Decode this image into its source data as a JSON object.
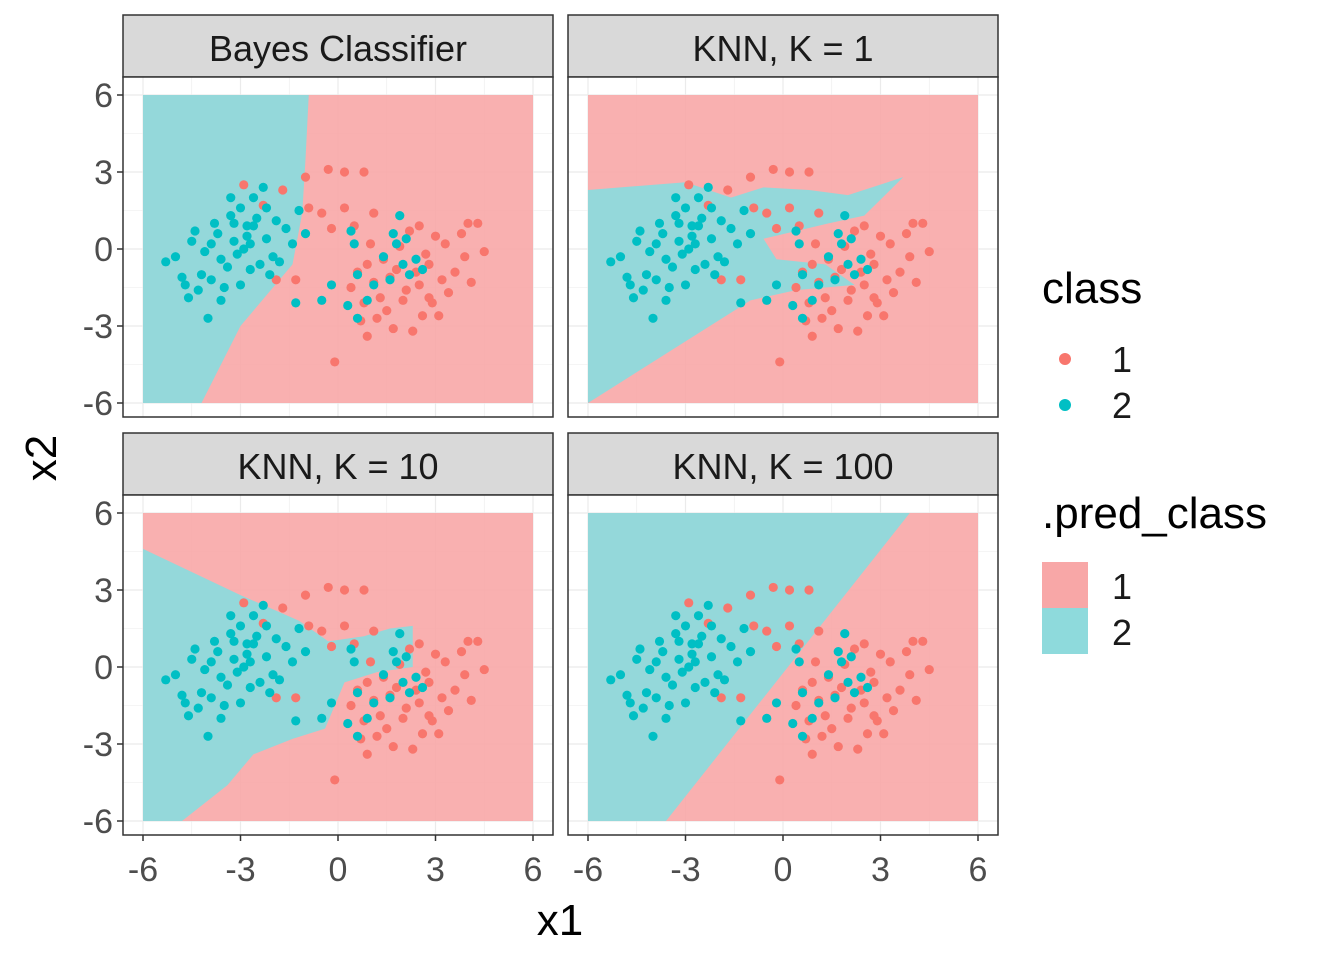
{
  "chart_data": {
    "type": "scatter",
    "facets": [
      "Bayes Classifier",
      "KNN, K = 1",
      "KNN, K = 10",
      "KNN, K = 100"
    ],
    "xlabel": "x1",
    "ylabel": "x2",
    "xlim": [
      -6,
      6
    ],
    "ylim": [
      -6,
      6
    ],
    "x_ticks": [
      -6,
      -3,
      0,
      3,
      6
    ],
    "y_ticks": [
      -6,
      -3,
      0,
      3,
      6
    ],
    "x_tick_labels": [
      "-6",
      "-3",
      "0",
      "3",
      "6"
    ],
    "y_tick_labels": [
      "-6",
      "-3",
      "0",
      "3",
      "6"
    ],
    "grid": true,
    "legends": {
      "class": {
        "title": "class",
        "entries": [
          "1",
          "2"
        ]
      },
      "pred_class": {
        "title": ".pred_class",
        "entries": [
          "1",
          "2"
        ]
      }
    },
    "legend_position": "right",
    "colors": {
      "class_1": "#F8766D",
      "class_2": "#00BFC4",
      "region_1": "#F8A7A7",
      "region_2": "#8EDADC"
    },
    "points": [
      {
        "x": 2.1,
        "y": -1.6,
        "c": 1
      },
      {
        "x": 2.5,
        "y": -1.4,
        "c": 1
      },
      {
        "x": 1.8,
        "y": -0.8,
        "c": 1
      },
      {
        "x": 1.3,
        "y": -1.9,
        "c": 1
      },
      {
        "x": 2.8,
        "y": -0.6,
        "c": 1
      },
      {
        "x": 3.2,
        "y": -1.2,
        "c": 1
      },
      {
        "x": 0.9,
        "y": -0.6,
        "c": 1
      },
      {
        "x": 1.5,
        "y": -2.4,
        "c": 1
      },
      {
        "x": 2.6,
        "y": -2.6,
        "c": 1
      },
      {
        "x": 3.6,
        "y": -0.9,
        "c": 1
      },
      {
        "x": 1.1,
        "y": -1.3,
        "c": 1
      },
      {
        "x": 2.2,
        "y": 0.7,
        "c": 1
      },
      {
        "x": 3.0,
        "y": 0.5,
        "c": 1
      },
      {
        "x": 0.4,
        "y": -1.5,
        "c": 1
      },
      {
        "x": 1.7,
        "y": -3.1,
        "c": 1
      },
      {
        "x": 2.9,
        "y": -2.1,
        "c": 1
      },
      {
        "x": 3.9,
        "y": -0.3,
        "c": 1
      },
      {
        "x": 1.9,
        "y": 0.1,
        "c": 1
      },
      {
        "x": 1.4,
        "y": -0.4,
        "c": 1
      },
      {
        "x": 2.4,
        "y": -0.9,
        "c": 1
      },
      {
        "x": 0.8,
        "y": -2.1,
        "c": 1
      },
      {
        "x": 3.4,
        "y": -1.7,
        "c": 1
      },
      {
        "x": 2.0,
        "y": -2.0,
        "c": 1
      },
      {
        "x": 1.2,
        "y": -2.7,
        "c": 1
      },
      {
        "x": 4.1,
        "y": -1.3,
        "c": 1
      },
      {
        "x": 2.7,
        "y": -0.2,
        "c": 1
      },
      {
        "x": 0.6,
        "y": -0.9,
        "c": 1
      },
      {
        "x": 1.6,
        "y": -1.1,
        "c": 1
      },
      {
        "x": 3.3,
        "y": 0.2,
        "c": 1
      },
      {
        "x": 2.3,
        "y": -3.2,
        "c": 1
      },
      {
        "x": 0.9,
        "y": -3.4,
        "c": 1
      },
      {
        "x": 4.0,
        "y": 1.0,
        "c": 1
      },
      {
        "x": 4.3,
        "y": 1.0,
        "c": 1
      },
      {
        "x": 4.5,
        "y": -0.1,
        "c": 1
      },
      {
        "x": 3.8,
        "y": 0.6,
        "c": 1
      },
      {
        "x": 0.2,
        "y": 1.6,
        "c": 1
      },
      {
        "x": 0.5,
        "y": 0.9,
        "c": 1
      },
      {
        "x": 1.1,
        "y": 1.4,
        "c": 1
      },
      {
        "x": -0.2,
        "y": 0.8,
        "c": 1
      },
      {
        "x": -0.1,
        "y": -4.4,
        "c": 1
      },
      {
        "x": 0.2,
        "y": 3.0,
        "c": 1
      },
      {
        "x": -0.3,
        "y": 3.1,
        "c": 1
      },
      {
        "x": 0.8,
        "y": 3.0,
        "c": 1
      },
      {
        "x": -1.7,
        "y": 2.3,
        "c": 1
      },
      {
        "x": -2.9,
        "y": 2.5,
        "c": 1
      },
      {
        "x": -1.0,
        "y": 2.8,
        "c": 1
      },
      {
        "x": -0.9,
        "y": 1.6,
        "c": 1
      },
      {
        "x": -0.5,
        "y": 1.4,
        "c": 1
      },
      {
        "x": -1.3,
        "y": -1.2,
        "c": 1
      },
      {
        "x": -1.9,
        "y": -1.2,
        "c": 1
      },
      {
        "x": -2.3,
        "y": 1.7,
        "c": 1
      },
      {
        "x": 2.8,
        "y": -1.9,
        "c": 1
      },
      {
        "x": 1.0,
        "y": 0.2,
        "c": 1
      },
      {
        "x": 3.1,
        "y": -2.6,
        "c": 1
      },
      {
        "x": 2.5,
        "y": 0.9,
        "c": 1
      },
      {
        "x": 0.7,
        "y": -2.8,
        "c": 1
      },
      {
        "x": -3.2,
        "y": 0.3,
        "c": 2
      },
      {
        "x": -2.8,
        "y": 0.9,
        "c": 2
      },
      {
        "x": -3.6,
        "y": -0.4,
        "c": 2
      },
      {
        "x": -2.5,
        "y": 1.2,
        "c": 2
      },
      {
        "x": -4.1,
        "y": -0.1,
        "c": 2
      },
      {
        "x": -3.9,
        "y": -1.2,
        "c": 2
      },
      {
        "x": -2.7,
        "y": -0.8,
        "c": 2
      },
      {
        "x": -4.5,
        "y": 0.3,
        "c": 2
      },
      {
        "x": -3.0,
        "y": 1.6,
        "c": 2
      },
      {
        "x": -2.2,
        "y": 0.4,
        "c": 2
      },
      {
        "x": -3.4,
        "y": -0.7,
        "c": 2
      },
      {
        "x": -4.8,
        "y": -1.1,
        "c": 2
      },
      {
        "x": -2.0,
        "y": -0.3,
        "c": 2
      },
      {
        "x": -3.8,
        "y": 1.0,
        "c": 2
      },
      {
        "x": -2.6,
        "y": 2.0,
        "c": 2
      },
      {
        "x": -4.3,
        "y": -1.6,
        "c": 2
      },
      {
        "x": -1.6,
        "y": 0.8,
        "c": 2
      },
      {
        "x": -3.1,
        "y": -0.2,
        "c": 2
      },
      {
        "x": -5.0,
        "y": -0.3,
        "c": 2
      },
      {
        "x": -4.0,
        "y": -2.7,
        "c": 2
      },
      {
        "x": -2.4,
        "y": -0.6,
        "c": 2
      },
      {
        "x": -1.4,
        "y": 0.2,
        "c": 2
      },
      {
        "x": -3.3,
        "y": 1.3,
        "c": 2
      },
      {
        "x": -4.6,
        "y": -1.9,
        "c": 2
      },
      {
        "x": -2.9,
        "y": 0.0,
        "c": 2
      },
      {
        "x": -3.7,
        "y": 0.6,
        "c": 2
      },
      {
        "x": -1.9,
        "y": 1.1,
        "c": 2
      },
      {
        "x": -3.5,
        "y": -1.5,
        "c": 2
      },
      {
        "x": -2.1,
        "y": -1.0,
        "c": 2
      },
      {
        "x": -4.4,
        "y": 0.7,
        "c": 2
      },
      {
        "x": -5.3,
        "y": -0.5,
        "c": 2
      },
      {
        "x": -1.2,
        "y": 1.5,
        "c": 2
      },
      {
        "x": -2.3,
        "y": 2.4,
        "c": 2
      },
      {
        "x": -3.0,
        "y": -1.4,
        "c": 2
      },
      {
        "x": -4.2,
        "y": -1.0,
        "c": 2
      },
      {
        "x": -2.8,
        "y": 0.5,
        "c": 2
      },
      {
        "x": -3.3,
        "y": 2.0,
        "c": 2
      },
      {
        "x": -1.8,
        "y": -0.5,
        "c": 2
      },
      {
        "x": -3.9,
        "y": 0.2,
        "c": 2
      },
      {
        "x": -4.7,
        "y": -1.4,
        "c": 2
      },
      {
        "x": -2.6,
        "y": 0.9,
        "c": 2
      },
      {
        "x": -3.6,
        "y": -2.0,
        "c": 2
      },
      {
        "x": -1.0,
        "y": 0.6,
        "c": 2
      },
      {
        "x": -2.2,
        "y": 1.6,
        "c": 2
      },
      {
        "x": -3.2,
        "y": 1.0,
        "c": 2
      },
      {
        "x": -2.7,
        "y": 0.2,
        "c": 2
      },
      {
        "x": 0.5,
        "y": 0.2,
        "c": 2
      },
      {
        "x": 1.7,
        "y": 0.6,
        "c": 2
      },
      {
        "x": 1.4,
        "y": -0.3,
        "c": 2
      },
      {
        "x": 2.0,
        "y": -0.6,
        "c": 2
      },
      {
        "x": 2.2,
        "y": -1.0,
        "c": 2
      },
      {
        "x": 1.1,
        "y": -1.4,
        "c": 2
      },
      {
        "x": 0.9,
        "y": -2.0,
        "c": 2
      },
      {
        "x": 0.3,
        "y": -2.2,
        "c": 2
      },
      {
        "x": 2.4,
        "y": -0.4,
        "c": 2
      },
      {
        "x": 1.9,
        "y": 1.3,
        "c": 2
      },
      {
        "x": -1.3,
        "y": -2.1,
        "c": 2
      },
      {
        "x": -0.5,
        "y": -2.0,
        "c": 2
      },
      {
        "x": -0.2,
        "y": -1.4,
        "c": 2
      },
      {
        "x": 0.6,
        "y": -2.7,
        "c": 2
      },
      {
        "x": 1.6,
        "y": -1.2,
        "c": 2
      },
      {
        "x": 2.6,
        "y": -0.8,
        "c": 2
      },
      {
        "x": 1.8,
        "y": 0.2,
        "c": 2
      },
      {
        "x": 2.1,
        "y": 0.4,
        "c": 2
      },
      {
        "x": 0.4,
        "y": 0.7,
        "c": 2
      },
      {
        "x": 0.6,
        "y": -1.0,
        "c": 2
      }
    ]
  }
}
